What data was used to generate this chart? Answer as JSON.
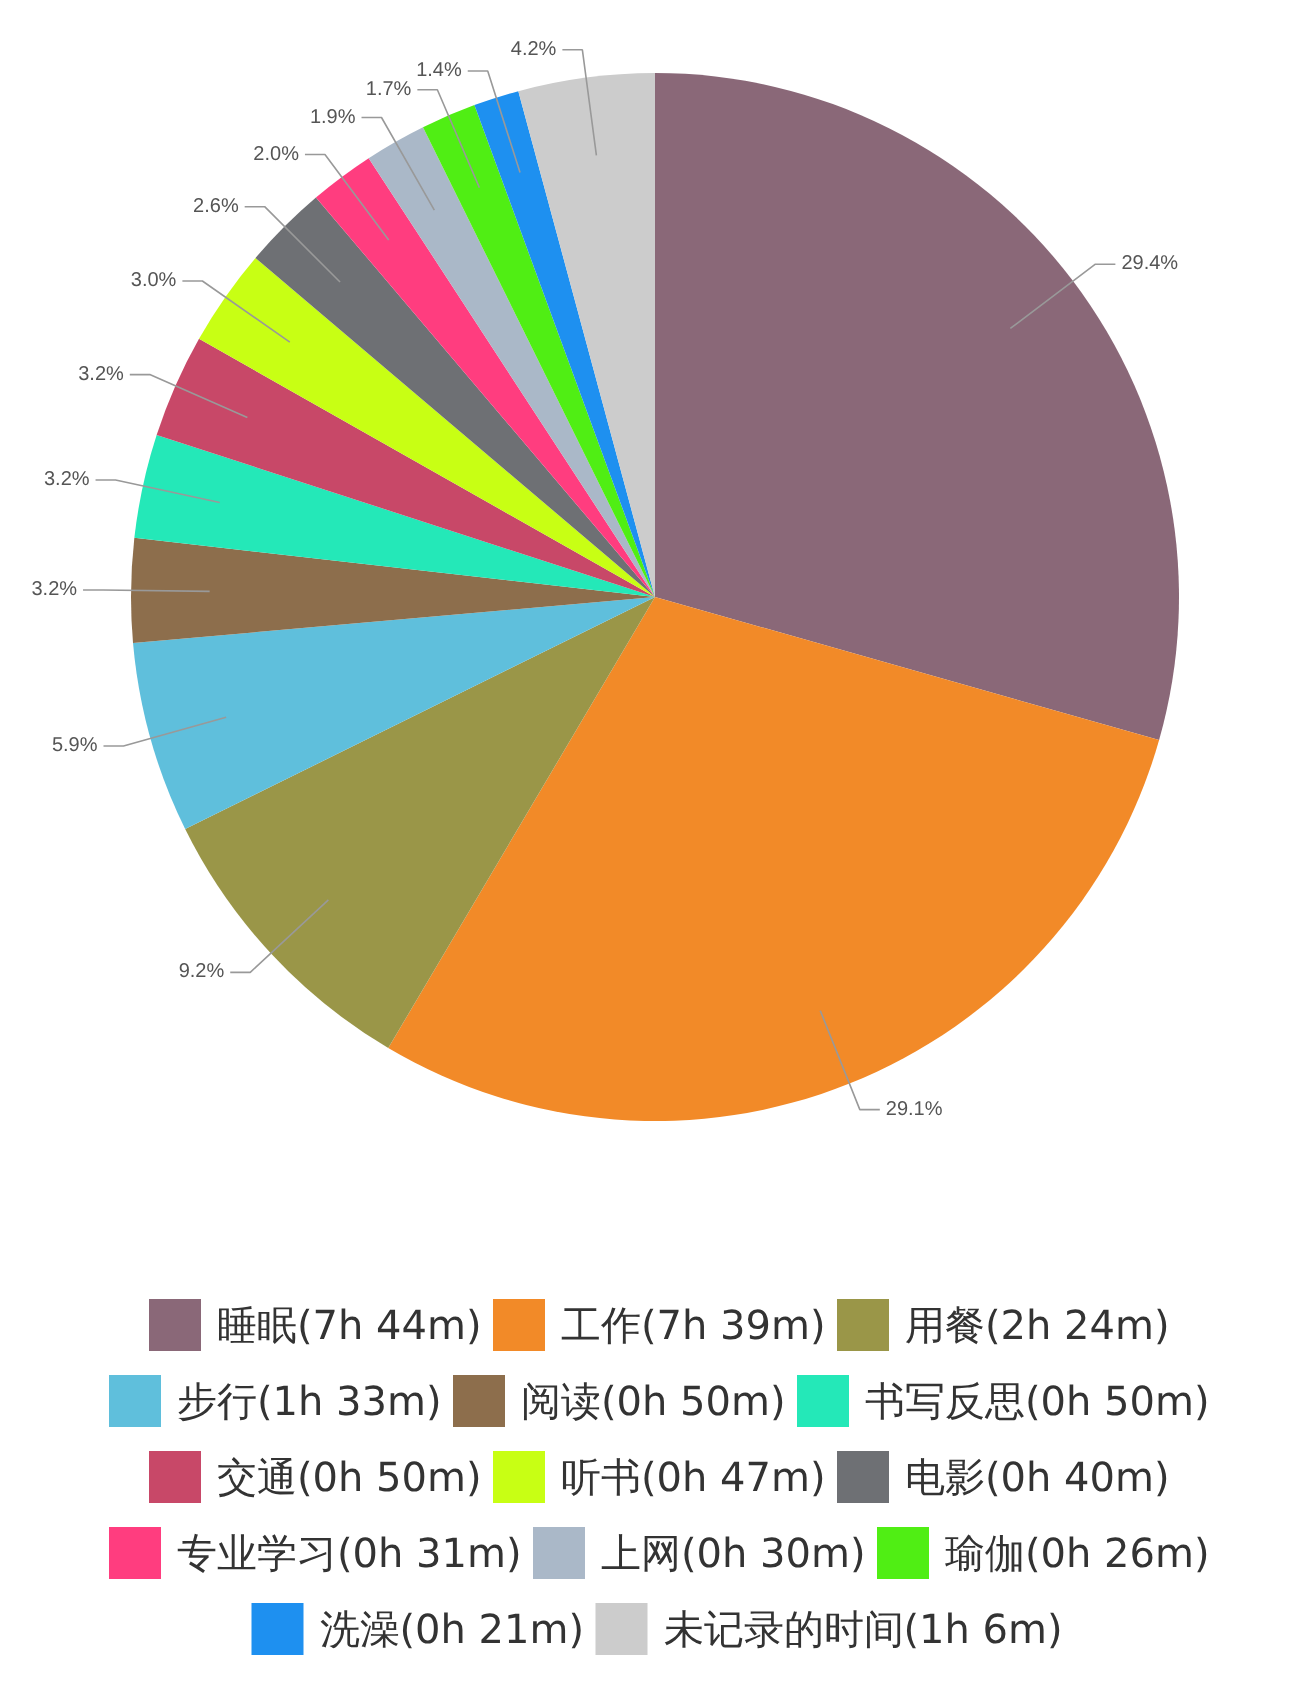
{
  "chart_data": {
    "type": "pie",
    "categories": [
      "睡眠(7h 44m)",
      "工作(7h 39m)",
      "用餐(2h 24m)",
      "步行(1h 33m)",
      "阅读(0h 50m)",
      "书写反思(0h 50m)",
      "交通(0h 50m)",
      "听书(0h 47m)",
      "电影(0h 40m)",
      "专业学习(0h 31m)",
      "上网(0h 30m)",
      "瑜伽(0h 26m)",
      "洗澡(0h 21m)",
      "未记录的时间(1h 6m)"
    ],
    "values": [
      29.4,
      29.1,
      9.2,
      5.9,
      3.2,
      3.2,
      3.2,
      3.0,
      2.6,
      2.0,
      1.9,
      1.7,
      1.4,
      4.2
    ],
    "value_labels": [
      "29.4%",
      "29.1%",
      "9.2%",
      "5.9%",
      "3.2%",
      "3.2%",
      "3.2%",
      "3.0%",
      "2.6%",
      "2.0%",
      "1.9%",
      "1.7%",
      "1.4%",
      "4.2%"
    ],
    "colors": [
      "#8a6878",
      "#f28a28",
      "#9a9648",
      "#5fbfdc",
      "#8d6e4c",
      "#24e8b8",
      "#c84868",
      "#c8ff14",
      "#6e7074",
      "#ff3d7f",
      "#aab8c8",
      "#50ee14",
      "#1e90f0",
      "#cccccc"
    ],
    "legend": "bottom"
  }
}
